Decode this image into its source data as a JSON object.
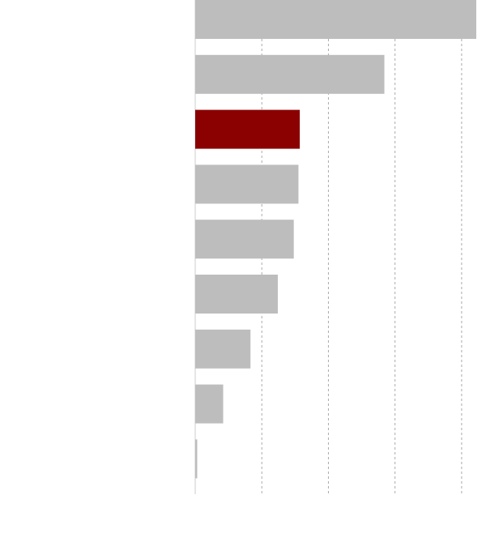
{
  "chart_data": {
    "type": "bar",
    "orientation": "horizontal",
    "title": "",
    "xlabel": "",
    "ylabel": "",
    "categories": [
      "",
      "",
      "",
      "",
      "",
      "",
      "",
      "",
      ""
    ],
    "values": [
      4.22,
      2.84,
      1.57,
      1.55,
      1.48,
      1.24,
      0.83,
      0.42,
      0.03
    ],
    "highlight_index": 2,
    "xlim": [
      0,
      4.22
    ],
    "grid": true,
    "legend": "none",
    "colors": {
      "bar": "#bdbdbd",
      "highlight": "#8b0000",
      "grid": "#aaaaaa",
      "axis": "#cccccc"
    }
  }
}
